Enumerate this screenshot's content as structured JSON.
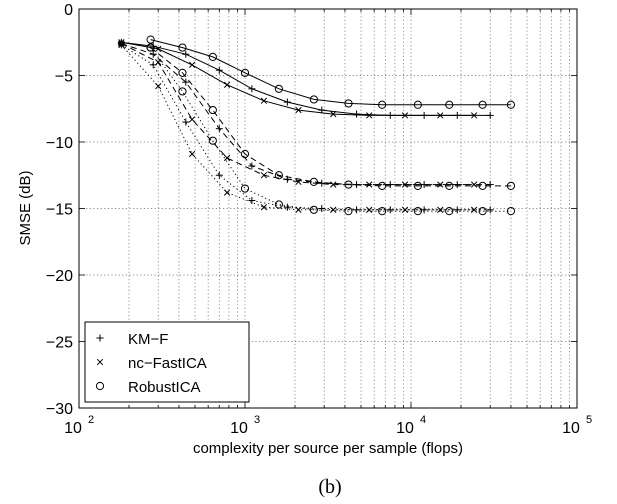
{
  "figure": {
    "caption": "(b)"
  },
  "chart_data": {
    "type": "line",
    "xlabel": "complexity per source per sample (flops)",
    "ylabel": "SMSE (dB)",
    "xscale": "log",
    "xlim": [
      100,
      100000
    ],
    "ylim": [
      -30,
      0
    ],
    "grid": "dotted, x major and minor",
    "x_ticks": [
      {
        "value": 100,
        "base": "10",
        "exp": "2"
      },
      {
        "value": 1000,
        "base": "10",
        "exp": "3"
      },
      {
        "value": 10000,
        "base": "10",
        "exp": "4"
      },
      {
        "value": 100000,
        "base": "10",
        "exp": "5"
      }
    ],
    "y_ticks": [
      0,
      -5,
      -10,
      -15,
      -20,
      -25,
      -30
    ],
    "legend": {
      "position": "bottom-left",
      "entries": [
        {
          "label": "KM−F",
          "marker": "plus"
        },
        {
          "label": "nc−FastICA",
          "marker": "cross"
        },
        {
          "label": "RobustICA",
          "marker": "circle"
        }
      ]
    },
    "series": [
      {
        "method": "KM-F",
        "marker": "plus",
        "line": "solid",
        "x": [
          180,
          280,
          440,
          700,
          1100,
          1800,
          2900,
          4700,
          7500,
          12000,
          19000,
          30000
        ],
        "y": [
          -2.5,
          -2.8,
          -3.4,
          -4.6,
          -6.0,
          -7.0,
          -7.6,
          -7.9,
          -8.0,
          -8.0,
          -8.0,
          -8.0
        ]
      },
      {
        "method": "KM-F",
        "marker": "plus",
        "line": "dashed",
        "x": [
          180,
          280,
          440,
          700,
          1100,
          1800,
          2900,
          4700,
          7500,
          12000,
          19000,
          30000
        ],
        "y": [
          -2.6,
          -3.4,
          -5.5,
          -9.0,
          -11.8,
          -12.8,
          -13.1,
          -13.2,
          -13.2,
          -13.2,
          -13.2,
          -13.2
        ]
      },
      {
        "method": "KM-F",
        "marker": "plus",
        "line": "dotted",
        "x": [
          180,
          280,
          440,
          700,
          1100,
          1800,
          2900,
          4700,
          7500,
          12000,
          19000,
          30000
        ],
        "y": [
          -2.7,
          -4.2,
          -8.5,
          -12.5,
          -14.4,
          -14.9,
          -15.0,
          -15.1,
          -15.1,
          -15.1,
          -15.1,
          -15.1
        ]
      },
      {
        "method": "nc-FastICA",
        "marker": "cross",
        "line": "solid",
        "x": [
          180,
          300,
          480,
          780,
          1300,
          2100,
          3400,
          5600,
          9200,
          15000,
          24000
        ],
        "y": [
          -2.5,
          -3.0,
          -4.2,
          -5.7,
          -6.9,
          -7.6,
          -7.9,
          -8.0,
          -8.0,
          -8.0,
          -8.0
        ]
      },
      {
        "method": "nc-FastICA",
        "marker": "cross",
        "line": "dashed",
        "x": [
          180,
          300,
          480,
          780,
          1300,
          2100,
          3400,
          5600,
          9200,
          15000,
          24000
        ],
        "y": [
          -2.6,
          -4.0,
          -8.3,
          -11.2,
          -12.5,
          -13.0,
          -13.2,
          -13.2,
          -13.2,
          -13.2,
          -13.2
        ]
      },
      {
        "method": "nc-FastICA",
        "marker": "cross",
        "line": "dotted",
        "x": [
          180,
          300,
          480,
          780,
          1300,
          2100,
          3400,
          5600,
          9200,
          15000,
          24000
        ],
        "y": [
          -2.7,
          -5.8,
          -10.9,
          -13.8,
          -14.9,
          -15.1,
          -15.1,
          -15.1,
          -15.1,
          -15.1,
          -15.1
        ]
      },
      {
        "method": "RobustICA",
        "marker": "circle",
        "line": "solid",
        "x": [
          270,
          420,
          640,
          1000,
          1600,
          2600,
          4200,
          6700,
          11000,
          17000,
          27000,
          40000
        ],
        "y": [
          -2.3,
          -2.9,
          -3.6,
          -4.8,
          -6.0,
          -6.8,
          -7.1,
          -7.2,
          -7.2,
          -7.2,
          -7.2,
          -7.2
        ]
      },
      {
        "method": "RobustICA",
        "marker": "circle",
        "line": "dashed",
        "x": [
          270,
          420,
          640,
          1000,
          1600,
          2600,
          4200,
          6700,
          11000,
          17000,
          27000,
          40000
        ],
        "y": [
          -2.9,
          -4.8,
          -7.6,
          -10.9,
          -12.5,
          -13.0,
          -13.2,
          -13.3,
          -13.3,
          -13.3,
          -13.3,
          -13.3
        ]
      },
      {
        "method": "RobustICA",
        "marker": "circle",
        "line": "dotted",
        "x": [
          270,
          420,
          640,
          1000,
          1600,
          2600,
          4200,
          6700,
          11000,
          17000,
          27000,
          40000
        ],
        "y": [
          -2.9,
          -6.2,
          -9.9,
          -13.5,
          -14.7,
          -15.1,
          -15.2,
          -15.2,
          -15.2,
          -15.2,
          -15.2,
          -15.2
        ]
      }
    ]
  }
}
